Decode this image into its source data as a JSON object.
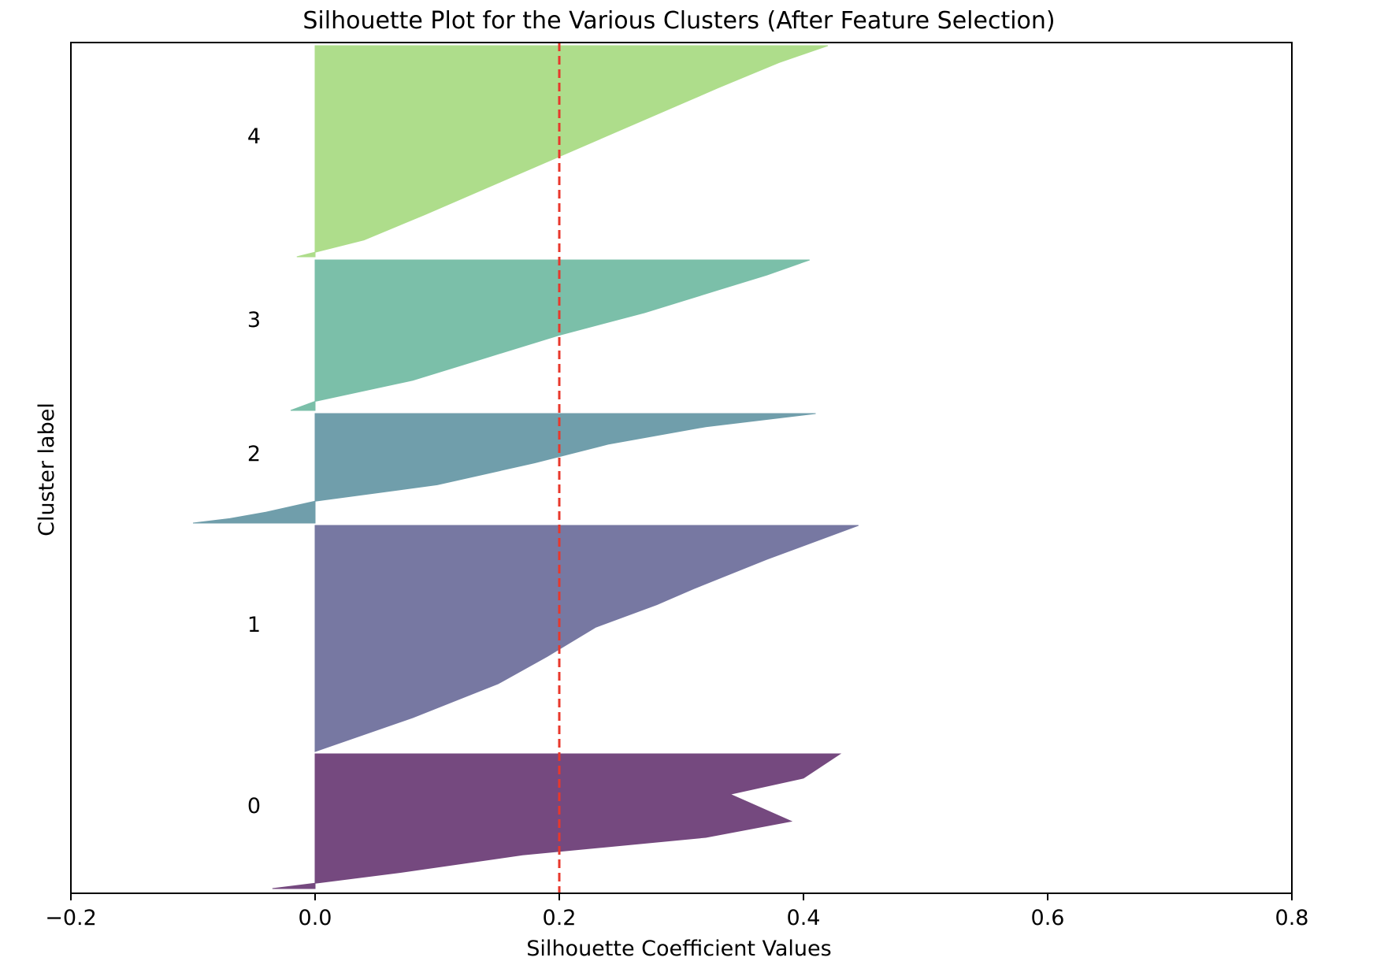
{
  "chart_data": {
    "type": "area",
    "orientation": "horizontal",
    "title": "Silhouette Plot for the Various Clusters (After Feature Selection)",
    "xlabel": "Silhouette Coefficient Values",
    "ylabel": "Cluster label",
    "xlim": [
      -0.2,
      0.8
    ],
    "xticks": [
      -0.2,
      0.0,
      0.2,
      0.4,
      0.6,
      0.8
    ],
    "xtick_labels": [
      "−0.2",
      "0.0",
      "0.2",
      "0.4",
      "0.6",
      "0.8"
    ],
    "grid": false,
    "average_silhouette": 0.2,
    "average_line_color": "#e8382c",
    "clusters": [
      {
        "label": "0",
        "color": "#440154",
        "samples": [
          [
            0.0,
            -0.035
          ],
          [
            0.04,
            0.0
          ],
          [
            0.12,
            0.07
          ],
          [
            0.25,
            0.17
          ],
          [
            0.38,
            0.32
          ],
          [
            0.5,
            0.39
          ],
          [
            0.7,
            0.34
          ],
          [
            0.82,
            0.4
          ],
          [
            1.0,
            0.43
          ]
        ]
      },
      {
        "label": "1",
        "color": "#3b528b",
        "samples": [
          [
            0.0,
            0.0
          ],
          [
            0.15,
            0.08
          ],
          [
            0.3,
            0.15
          ],
          [
            0.42,
            0.19
          ],
          [
            0.55,
            0.23
          ],
          [
            0.65,
            0.28
          ],
          [
            0.72,
            0.31
          ],
          [
            0.85,
            0.37
          ],
          [
            1.0,
            0.445
          ]
        ]
      },
      {
        "label": "2",
        "color": "#21918c",
        "samples": [
          [
            0.0,
            -0.1
          ],
          [
            0.04,
            -0.07
          ],
          [
            0.1,
            -0.04
          ],
          [
            0.2,
            0.0
          ],
          [
            0.35,
            0.1
          ],
          [
            0.55,
            0.18
          ],
          [
            0.72,
            0.24
          ],
          [
            0.88,
            0.32
          ],
          [
            1.0,
            0.41
          ]
        ]
      },
      {
        "label": "3",
        "color": "#5ec962",
        "samples": [
          [
            0.0,
            -0.02
          ],
          [
            0.06,
            0.0
          ],
          [
            0.2,
            0.08
          ],
          [
            0.35,
            0.14
          ],
          [
            0.5,
            0.2
          ],
          [
            0.65,
            0.27
          ],
          [
            0.8,
            0.33
          ],
          [
            0.9,
            0.37
          ],
          [
            1.0,
            0.405
          ]
        ]
      },
      {
        "label": "4",
        "color": "#7ad151",
        "samples": [
          [
            0.0,
            -0.015
          ],
          [
            0.08,
            0.04
          ],
          [
            0.2,
            0.09
          ],
          [
            0.35,
            0.15
          ],
          [
            0.5,
            0.21
          ],
          [
            0.65,
            0.27
          ],
          [
            0.8,
            0.33
          ],
          [
            0.92,
            0.38
          ],
          [
            1.0,
            0.42
          ]
        ]
      }
    ],
    "colors": {
      "cluster_0": "#75497f",
      "cluster_1": "#7778a2",
      "cluster_2": "#709eab",
      "cluster_3": "#7bbfa9",
      "cluster_4": "#aedd8b"
    }
  }
}
